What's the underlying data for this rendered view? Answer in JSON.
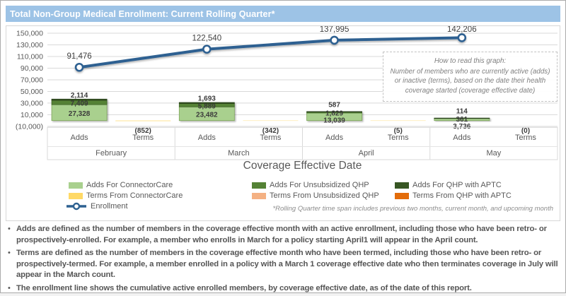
{
  "title": "Total Non-Group Medical Enrollment: Current Rolling Quarter*",
  "colors": {
    "title_bar_bg": "#9DC3E6",
    "title_text": "#FFFFFF",
    "adds_connectorcare": "#A9D08E",
    "adds_unsubsidized_qhp": "#548235",
    "adds_qhp_aptc": "#375623",
    "terms_connectorcare": "#FFD966",
    "terms_unsubsidized_qhp": "#F4B183",
    "terms_qhp_aptc": "#E36C0A",
    "enrollment_line": "#2D6191",
    "gridline": "#D9D9D9",
    "axis_text": "#595959",
    "data_label": "#3B3B3B"
  },
  "chart_data": {
    "type": "combo: stacked bar (adds) + line (cumulative enrollment)",
    "months": [
      "February",
      "March",
      "April",
      "May"
    ],
    "sub_categories": [
      "Adds",
      "Terms"
    ],
    "xlabel": "Coverage Effective Date",
    "ylim": [
      -10000,
      150000
    ],
    "ytick_step": 20000,
    "ytick_labels": [
      "150,000",
      "130,000",
      "110,000",
      "90,000",
      "70,000",
      "50,000",
      "30,000",
      "10,000",
      "(10,000)"
    ],
    "grid": "horizontal",
    "legend_position": "bottom",
    "series": [
      {
        "name": "Adds For ConnectorCare",
        "values": [
          27328,
          23482,
          13039,
          3736
        ],
        "labels": [
          "27,328",
          "23,482",
          "13,039",
          "3,736"
        ]
      },
      {
        "name": "Adds For Unsubsidized QHP",
        "values": [
          7409,
          5889,
          1829,
          361
        ],
        "labels": [
          "7,409",
          "5,889",
          "1,829",
          "361"
        ]
      },
      {
        "name": "Adds For QHP with APTC",
        "values": [
          2114,
          1693,
          587,
          114
        ],
        "labels": [
          "2,114",
          "1,693",
          "587",
          "114"
        ]
      },
      {
        "name": "Terms",
        "values": [
          -852,
          -342,
          -5,
          0
        ],
        "labels": [
          "(852)",
          "(342)",
          "(5)",
          "(0)"
        ]
      }
    ],
    "enrollment": {
      "name": "Enrollment",
      "values": [
        91476,
        122540,
        137995,
        142206
      ],
      "labels": [
        "91,476",
        "122,540",
        "137,995",
        "142,206"
      ]
    }
  },
  "legend": {
    "items": [
      {
        "label": "Adds For ConnectorCare",
        "color": "#A9D08E",
        "col": 0,
        "row": 0
      },
      {
        "label": "Adds For Unsubsidized QHP",
        "color": "#548235",
        "col": 1,
        "row": 0
      },
      {
        "label": "Adds For QHP with APTC",
        "color": "#375623",
        "col": 2,
        "row": 0
      },
      {
        "label": "Terms From ConnectorCare",
        "color": "#FFD966",
        "col": 0,
        "row": 1
      },
      {
        "label": "Terms From Unsubsidized QHP",
        "color": "#F4B183",
        "col": 1,
        "row": 1
      },
      {
        "label": "Terms From QHP with APTC",
        "color": "#E36C0A",
        "col": 2,
        "row": 1
      }
    ],
    "line_item": {
      "label": "Enrollment",
      "color": "#2D6191"
    }
  },
  "info_box": {
    "title": "How to read this graph:",
    "lines": [
      "Number of members who are currently active (adds)",
      "or inactive (terms), based on the date their health",
      "coverage started (coverage effective date)"
    ]
  },
  "footnote": "*Rolling Quarter time span includes previous two months, current month, and upcoming month",
  "notes": [
    "Adds are defined as the number of members in the coverage effective month with an active enrollment, including those who have been retro- or prospectively-enrolled.  For example, a member who enrolls in March for a policy starting April1 will appear in the April count.",
    "Terms are defined as the number of members in the coverage effective month who have been termed, including those who have been retro- or prospectively-termed.  For example, a member enrolled in a policy with a March 1 coverage effective date who then terminates coverage in July will appear in the March count.",
    "The enrollment line shows the cumulative active enrolled members, by coverage effective date, as of the date of this report."
  ]
}
